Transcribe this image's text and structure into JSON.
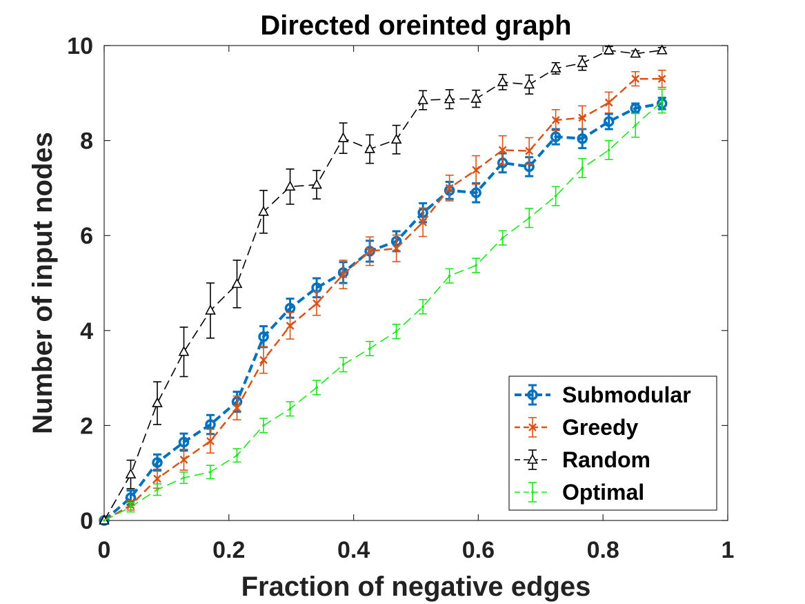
{
  "chart_data": {
    "type": "line",
    "title": "Directed oreinted graph",
    "xlabel": "Fraction of negative edges",
    "ylabel": "Number of input nodes",
    "xlim": [
      0,
      1
    ],
    "ylim": [
      0,
      10
    ],
    "xticks": [
      0,
      0.2,
      0.4,
      0.6,
      0.8,
      1
    ],
    "xtick_labels": [
      "0",
      "0.2",
      "0.4",
      "0.6",
      "0.8",
      "1"
    ],
    "yticks": [
      0,
      2,
      4,
      6,
      8,
      10
    ],
    "ytick_labels": [
      "0",
      "2",
      "4",
      "6",
      "8",
      "10"
    ],
    "legend_position": "bottom-right",
    "x": [
      0,
      0.0426,
      0.0852,
      0.1278,
      0.1704,
      0.213,
      0.2556,
      0.2982,
      0.3408,
      0.3834,
      0.426,
      0.4686,
      0.5112,
      0.5538,
      0.5964,
      0.639,
      0.6816,
      0.7242,
      0.7668,
      0.8094,
      0.852,
      0.8946
    ],
    "series": [
      {
        "name": "Submodular",
        "color": "#0072bd",
        "dash": "12,6",
        "width": 4,
        "marker": "circle",
        "values": [
          0,
          0.48,
          1.22,
          1.65,
          2.02,
          2.5,
          3.87,
          4.47,
          4.9,
          5.22,
          5.67,
          5.88,
          6.48,
          6.95,
          6.9,
          7.53,
          7.45,
          8.08,
          8.04,
          8.4,
          8.68,
          8.78
        ],
        "errors": [
          0,
          0.15,
          0.17,
          0.18,
          0.2,
          0.21,
          0.22,
          0.2,
          0.2,
          0.22,
          0.22,
          0.21,
          0.2,
          0.18,
          0.2,
          0.2,
          0.2,
          0.16,
          0.2,
          0.16,
          0.1,
          0.12
        ]
      },
      {
        "name": "Greedy",
        "color": "#d95319",
        "dash": "12,6",
        "width": 2.5,
        "marker": "x",
        "values": [
          0,
          0.32,
          0.88,
          1.28,
          1.67,
          2.37,
          3.38,
          4.1,
          4.57,
          5.18,
          5.67,
          5.73,
          6.28,
          7.0,
          7.38,
          7.8,
          7.78,
          8.43,
          8.48,
          8.8,
          9.3,
          9.3
        ],
        "errors": [
          0,
          0.1,
          0.2,
          0.22,
          0.25,
          0.25,
          0.28,
          0.28,
          0.25,
          0.3,
          0.3,
          0.28,
          0.3,
          0.27,
          0.3,
          0.3,
          0.28,
          0.22,
          0.25,
          0.22,
          0.15,
          0.18
        ]
      },
      {
        "name": "Random",
        "color": "#000000",
        "dash": "14,7",
        "width": 1.6,
        "marker": "triangle",
        "values": [
          0,
          0.97,
          2.47,
          3.55,
          4.42,
          4.98,
          6.5,
          7.03,
          7.07,
          8.05,
          7.82,
          8.02,
          8.85,
          8.87,
          8.88,
          9.23,
          9.18,
          9.52,
          9.63,
          9.9,
          9.83,
          9.9
        ],
        "errors": [
          0,
          0.3,
          0.45,
          0.52,
          0.58,
          0.5,
          0.45,
          0.37,
          0.3,
          0.32,
          0.3,
          0.3,
          0.2,
          0.2,
          0.18,
          0.16,
          0.2,
          0.12,
          0.15,
          0.08,
          0.06,
          0.06
        ]
      },
      {
        "name": "Optimal",
        "color": "#19e619",
        "dash": "14,7",
        "width": 1.6,
        "marker": "dot",
        "values": [
          0,
          0.28,
          0.65,
          0.9,
          1.02,
          1.37,
          2.0,
          2.35,
          2.8,
          3.28,
          3.62,
          3.98,
          4.5,
          5.15,
          5.37,
          5.95,
          6.37,
          6.83,
          7.42,
          7.8,
          8.32,
          8.83
        ],
        "errors": [
          0,
          0.1,
          0.12,
          0.12,
          0.14,
          0.14,
          0.15,
          0.15,
          0.15,
          0.15,
          0.15,
          0.15,
          0.15,
          0.15,
          0.15,
          0.15,
          0.2,
          0.2,
          0.2,
          0.2,
          0.25,
          0.25
        ]
      }
    ]
  }
}
